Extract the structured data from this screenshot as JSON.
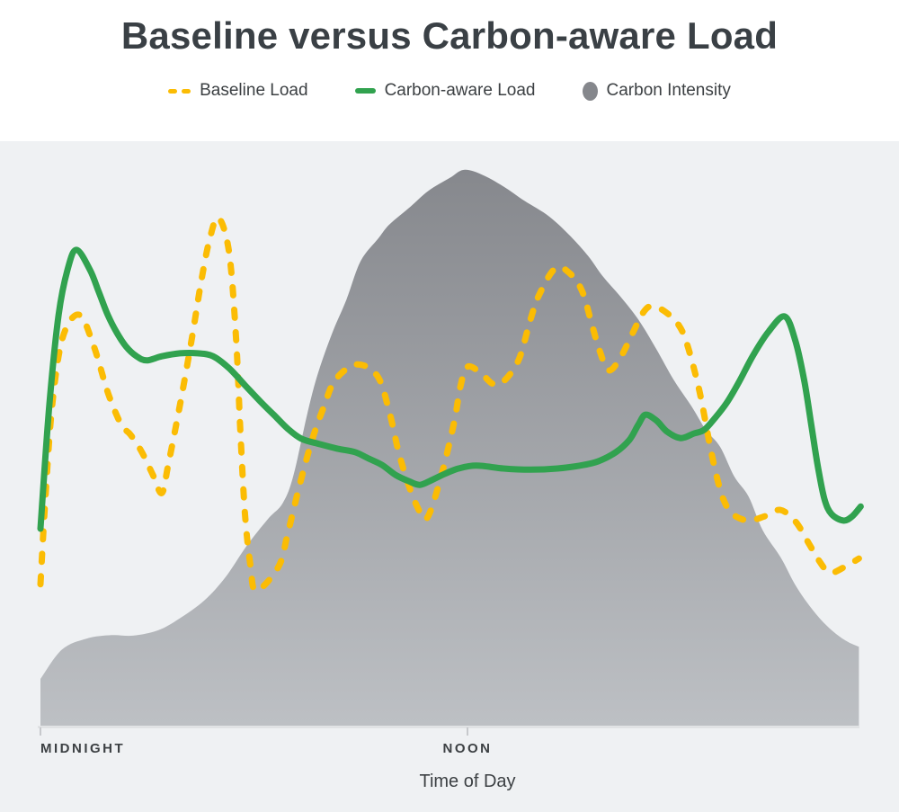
{
  "title": "Baseline versus Carbon-aware Load",
  "legend": {
    "items": [
      {
        "label": "Baseline Load",
        "swatch": "dashed",
        "color": "#FBBC04"
      },
      {
        "label": "Carbon-aware Load",
        "swatch": "solid",
        "color": "#31A24F"
      },
      {
        "label": "Carbon Intensity",
        "swatch": "circle",
        "color": "#85878C"
      }
    ]
  },
  "colors": {
    "plot_background": "#EFF1F3",
    "axis_line": "#DBDDDF",
    "tick_mark": "#C7C9CC",
    "text": "#3C4043",
    "baseline_load": "#FBBC04",
    "carbon_aware_load": "#31A24F",
    "carbon_intensity_top": "#86888D",
    "carbon_intensity_bottom": "#BDC0C4"
  },
  "chart_data": {
    "type": "line",
    "title": "Baseline versus Carbon-aware Load",
    "xlabel": "Time of Day",
    "ylabel": "",
    "x_unit": "hours (0 = midnight, 12 = noon)",
    "x_domain": [
      0,
      23
    ],
    "y_domain": [
      0,
      100
    ],
    "grid": false,
    "legend_position": "top",
    "x_ticks": [
      {
        "hour": 0,
        "label": "MIDNIGHT",
        "align": "start"
      },
      {
        "hour": 12,
        "label": "NOON",
        "align": "middle"
      }
    ],
    "series": [
      {
        "name": "Carbon Intensity",
        "type": "area",
        "style": "gradient-fill",
        "points": [
          [
            0,
            8
          ],
          [
            0.6,
            13
          ],
          [
            1.3,
            14.9
          ],
          [
            2,
            15.5
          ],
          [
            2.6,
            15.4
          ],
          [
            3.3,
            16.3
          ],
          [
            3.9,
            18.3
          ],
          [
            4.6,
            21.4
          ],
          [
            5.2,
            25.4
          ],
          [
            5.8,
            30.8
          ],
          [
            6.4,
            35.4
          ],
          [
            6.8,
            38
          ],
          [
            7.1,
            42.6
          ],
          [
            7.5,
            53.4
          ],
          [
            7.8,
            60.3
          ],
          [
            8.2,
            67.2
          ],
          [
            8.6,
            72.9
          ],
          [
            9,
            79.5
          ],
          [
            9.5,
            83.4
          ],
          [
            9.8,
            85.7
          ],
          [
            10.4,
            88.8
          ],
          [
            10.9,
            91.5
          ],
          [
            11.5,
            93.7
          ],
          [
            11.9,
            95.1
          ],
          [
            12.4,
            94.3
          ],
          [
            13,
            92.3
          ],
          [
            13.6,
            89.8
          ],
          [
            14.3,
            87.1
          ],
          [
            14.9,
            83.7
          ],
          [
            15.4,
            80.3
          ],
          [
            15.8,
            76.9
          ],
          [
            16.3,
            73.4
          ],
          [
            16.8,
            69.5
          ],
          [
            17.3,
            64.5
          ],
          [
            17.8,
            59.1
          ],
          [
            18.3,
            54.6
          ],
          [
            18.7,
            50.6
          ],
          [
            19.1,
            47.7
          ],
          [
            19.5,
            42.6
          ],
          [
            19.9,
            39.2
          ],
          [
            20.3,
            33.4
          ],
          [
            20.8,
            28.8
          ],
          [
            21.2,
            24.2
          ],
          [
            21.6,
            20.6
          ],
          [
            22,
            17.7
          ],
          [
            22.4,
            15.5
          ],
          [
            22.7,
            14.3
          ],
          [
            23,
            13.5
          ]
        ]
      },
      {
        "name": "Baseline Load",
        "type": "line",
        "style": "dashed",
        "points": [
          [
            0,
            24.2
          ],
          [
            0.13,
            38
          ],
          [
            0.33,
            54.9
          ],
          [
            0.63,
            66.5
          ],
          [
            1.09,
            70.3
          ],
          [
            1.5,
            64.9
          ],
          [
            1.9,
            56.9
          ],
          [
            2.27,
            51.5
          ],
          [
            2.53,
            49.8
          ],
          [
            2.85,
            46.8
          ],
          [
            3.16,
            42.9
          ],
          [
            3.41,
            39.8
          ],
          [
            3.59,
            44.6
          ],
          [
            3.92,
            54.9
          ],
          [
            4.24,
            65.7
          ],
          [
            4.5,
            75.4
          ],
          [
            4.75,
            83.1
          ],
          [
            5,
            86.9
          ],
          [
            5.3,
            81
          ],
          [
            5.5,
            66
          ],
          [
            5.62,
            50
          ],
          [
            5.75,
            36
          ],
          [
            5.9,
            27.5
          ],
          [
            6.06,
            23.1
          ],
          [
            6.69,
            27.2
          ],
          [
            6.95,
            32.9
          ],
          [
            7.28,
            41.1
          ],
          [
            7.63,
            48.8
          ],
          [
            7.96,
            54.5
          ],
          [
            8.29,
            59.2
          ],
          [
            8.89,
            61.8
          ],
          [
            9.47,
            59.8
          ],
          [
            9.8,
            53.8
          ],
          [
            10.05,
            47.2
          ],
          [
            10.3,
            42
          ],
          [
            10.6,
            37.3
          ],
          [
            10.86,
            35.5
          ],
          [
            11.24,
            42.2
          ],
          [
            11.62,
            51.8
          ],
          [
            11.8,
            58
          ],
          [
            12,
            61.4
          ],
          [
            12.38,
            60.3
          ],
          [
            12.71,
            58.5
          ],
          [
            13.01,
            58.9
          ],
          [
            13.44,
            62.6
          ],
          [
            13.77,
            69.5
          ],
          [
            14.02,
            73.8
          ],
          [
            14.48,
            78.3
          ],
          [
            14.91,
            77.2
          ],
          [
            15.23,
            74.2
          ],
          [
            15.49,
            68.8
          ],
          [
            15.71,
            64.2
          ],
          [
            15.97,
            60.8
          ],
          [
            16.29,
            62.9
          ],
          [
            16.62,
            66.9
          ],
          [
            16.93,
            70.6
          ],
          [
            17.18,
            71.8
          ],
          [
            17.56,
            70.8
          ],
          [
            17.94,
            68.5
          ],
          [
            18.19,
            64.9
          ],
          [
            18.52,
            57.2
          ],
          [
            18.82,
            47.7
          ],
          [
            19.02,
            42.2
          ],
          [
            19.2,
            38.6
          ],
          [
            19.45,
            36.2
          ],
          [
            19.88,
            35.1
          ],
          [
            20.34,
            35.8
          ],
          [
            20.79,
            36.9
          ],
          [
            21.22,
            34.9
          ],
          [
            21.6,
            31.1
          ],
          [
            21.85,
            28.5
          ],
          [
            22.18,
            26.2
          ],
          [
            22.61,
            27.2
          ],
          [
            23,
            28.6
          ]
        ]
      },
      {
        "name": "Carbon-aware Load",
        "type": "line",
        "style": "solid",
        "points": [
          [
            0,
            33.7
          ],
          [
            0.25,
            54.9
          ],
          [
            0.51,
            70.3
          ],
          [
            0.76,
            78
          ],
          [
            1.01,
            81.4
          ],
          [
            1.39,
            78
          ],
          [
            1.64,
            74.2
          ],
          [
            1.89,
            70.3
          ],
          [
            2.15,
            67.2
          ],
          [
            2.4,
            64.9
          ],
          [
            2.7,
            63.2
          ],
          [
            2.98,
            62.5
          ],
          [
            3.41,
            63.2
          ],
          [
            3.92,
            63.7
          ],
          [
            4.42,
            63.7
          ],
          [
            4.85,
            63.2
          ],
          [
            5.31,
            61.1
          ],
          [
            5.74,
            58.3
          ],
          [
            6.19,
            55.4
          ],
          [
            6.57,
            53.1
          ],
          [
            6.95,
            50.8
          ],
          [
            7.33,
            49.1
          ],
          [
            7.83,
            48.2
          ],
          [
            8.34,
            47.4
          ],
          [
            8.84,
            46.8
          ],
          [
            9.22,
            45.7
          ],
          [
            9.6,
            44.6
          ],
          [
            9.98,
            42.9
          ],
          [
            10.36,
            41.8
          ],
          [
            10.66,
            41.2
          ],
          [
            10.99,
            42
          ],
          [
            11.37,
            43.1
          ],
          [
            11.75,
            44
          ],
          [
            12.25,
            44.5
          ],
          [
            13.01,
            44
          ],
          [
            13.77,
            43.8
          ],
          [
            14.53,
            44
          ],
          [
            15.16,
            44.5
          ],
          [
            15.66,
            45.2
          ],
          [
            16.17,
            46.8
          ],
          [
            16.55,
            48.9
          ],
          [
            16.8,
            51.5
          ],
          [
            17,
            53.2
          ],
          [
            17.31,
            52.2
          ],
          [
            17.61,
            50.3
          ],
          [
            17.99,
            49.2
          ],
          [
            18.37,
            50
          ],
          [
            18.65,
            50.6
          ],
          [
            18.95,
            52.6
          ],
          [
            19.28,
            55.2
          ],
          [
            19.63,
            58.8
          ],
          [
            20.03,
            63.4
          ],
          [
            20.47,
            67.5
          ],
          [
            20.92,
            70
          ],
          [
            21.22,
            65.7
          ],
          [
            21.47,
            58.8
          ],
          [
            21.67,
            51.1
          ],
          [
            21.85,
            44.2
          ],
          [
            22.03,
            38.8
          ],
          [
            22.23,
            36.2
          ],
          [
            22.56,
            35.1
          ],
          [
            22.81,
            35.8
          ],
          [
            23.05,
            37.5
          ]
        ]
      }
    ]
  }
}
